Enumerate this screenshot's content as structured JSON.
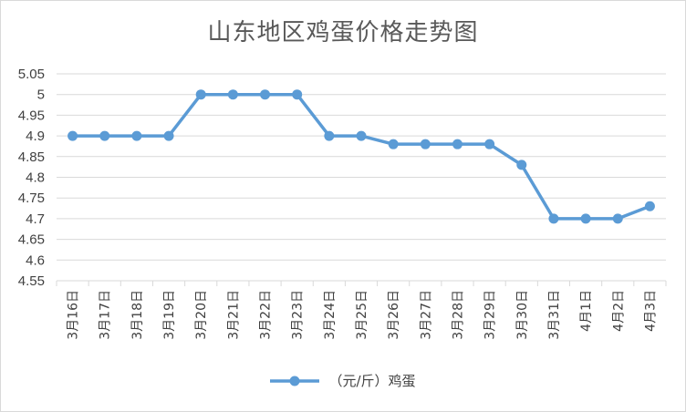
{
  "chart_data": {
    "type": "line",
    "title": "山东地区鸡蛋价格走势图",
    "categories": [
      "3月16日",
      "3月17日",
      "3月18日",
      "3月19日",
      "3月20日",
      "3月21日",
      "3月22日",
      "3月23日",
      "3月24日",
      "3月25日",
      "3月26日",
      "3月27日",
      "3月28日",
      "3月29日",
      "3月30日",
      "3月31日",
      "4月1日",
      "4月2日",
      "4月3日"
    ],
    "series": [
      {
        "name": "（元/斤）鸡蛋",
        "values": [
          4.9,
          4.9,
          4.9,
          4.9,
          5.0,
          5.0,
          5.0,
          5.0,
          4.9,
          4.9,
          4.88,
          4.88,
          4.88,
          4.88,
          4.83,
          4.7,
          4.7,
          4.7,
          4.73
        ]
      }
    ],
    "ylim": [
      4.55,
      5.05
    ],
    "yticks": [
      "4.55",
      "4.6",
      "4.65",
      "4.7",
      "4.75",
      "4.8",
      "4.85",
      "4.9",
      "4.95",
      "5",
      "5.05"
    ],
    "grid": true,
    "legend": "bottom",
    "colors": {
      "line": "#5b9bd5",
      "grid": "#d9d9d9",
      "axis_text": "#404040",
      "title": "#595959"
    }
  }
}
